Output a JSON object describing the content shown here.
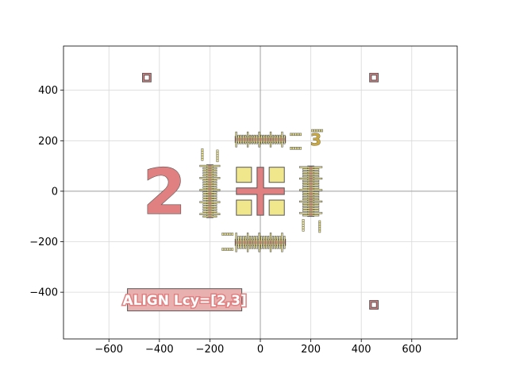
{
  "chart_data": {
    "type": "scatter",
    "title": "",
    "xlabel": "",
    "ylabel": "",
    "xlim": [
      -780,
      780
    ],
    "ylim": [
      -585,
      575
    ],
    "grid": true,
    "x_ticks": [
      -600,
      -400,
      -200,
      0,
      200,
      400,
      600
    ],
    "y_ticks": [
      -400,
      -200,
      0,
      200,
      400
    ],
    "x_tick_labels": [
      "−600",
      "−400",
      "−200",
      "0",
      "200",
      "400",
      "600"
    ],
    "y_tick_labels": [
      "−400",
      "−200",
      "0",
      "200",
      "400"
    ],
    "colors": {
      "pad_fill": "#e08080",
      "comb_fill": "#f0e68c",
      "edge": "#555555",
      "dot_fill": "#c9a840",
      "axis_line": "#a0a0a0",
      "grid": "#d8d8d8"
    },
    "corner_markers": [
      {
        "x": -450,
        "y": 450
      },
      {
        "x": 450,
        "y": 450
      },
      {
        "x": 450,
        "y": -450
      },
      {
        "x": -450,
        "y": -450
      }
    ],
    "center_squares": [
      {
        "x": -65,
        "y": 65
      },
      {
        "x": 65,
        "y": 65
      },
      {
        "x": -65,
        "y": -65
      },
      {
        "x": 65,
        "y": -65
      }
    ],
    "comb_arrays": [
      {
        "orientation": "h",
        "xmin": -100,
        "xmax": 100,
        "ymin": 175,
        "ymax": 235
      },
      {
        "orientation": "h",
        "xmin": -100,
        "xmax": 100,
        "ymin": -240,
        "ymax": -165
      },
      {
        "orientation": "v",
        "xmin": -240,
        "xmax": -160,
        "ymin": -105,
        "ymax": 105
      },
      {
        "orientation": "v",
        "xmin": 155,
        "xmax": 245,
        "ymin": -100,
        "ymax": 100
      }
    ],
    "labels": [
      {
        "text": "2",
        "x": -380,
        "y": 0
      },
      {
        "text": "3",
        "x": 220,
        "y": 205
      },
      {
        "text": "ALIGN Lcy=[2,3]",
        "x": -300,
        "y": -430
      }
    ]
  }
}
